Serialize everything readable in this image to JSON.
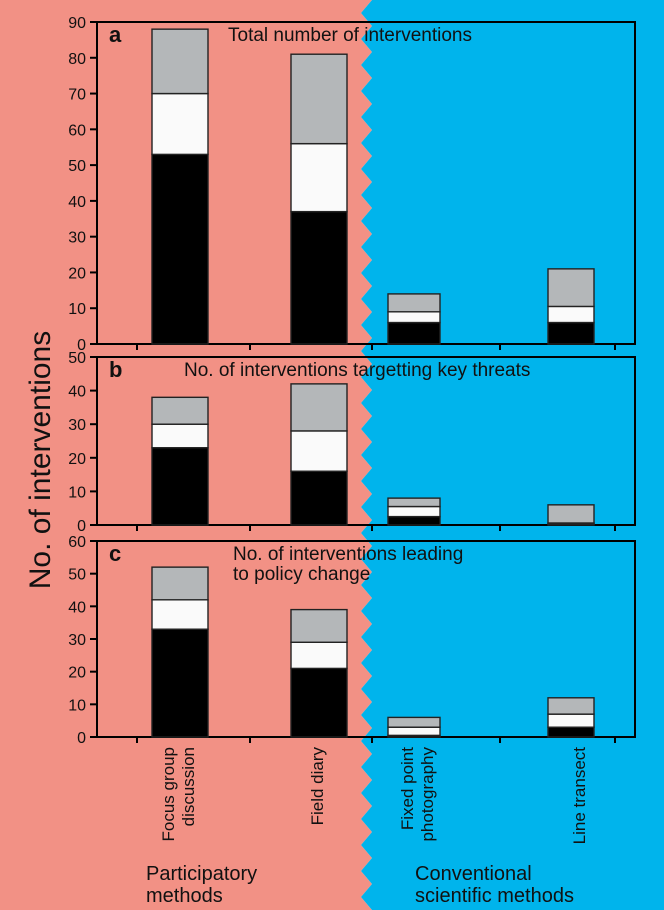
{
  "colors": {
    "participatory_bg": "#f29185",
    "conventional_bg": "#00b4ec",
    "segment_bottom": "#000000",
    "segment_middle": "#fafafa",
    "segment_top": "#b4b7b9"
  },
  "ylabel": "No. of interventions",
  "categories": [
    "Focus group discussion",
    "Field diary",
    "Fixed point photography",
    "Line transect"
  ],
  "category_lines": [
    [
      "Focus group",
      "discussion"
    ],
    [
      "Field diary"
    ],
    [
      "Fixed point",
      "photography"
    ],
    [
      "Line transect"
    ]
  ],
  "groups": {
    "participatory": [
      "Participatory",
      "methods"
    ],
    "conventional": [
      "Conventional",
      "scientific methods"
    ]
  },
  "chart_data": [
    {
      "type": "bar",
      "stacked": true,
      "letter": "a",
      "title": "Total number of interventions",
      "categories": [
        "Focus group discussion",
        "Field diary",
        "Fixed point photography",
        "Line transect"
      ],
      "series": [
        {
          "values": [
            53,
            37,
            6,
            6
          ]
        },
        {
          "values": [
            17,
            19,
            3,
            4.5
          ]
        },
        {
          "values": [
            18,
            25,
            5,
            10.5
          ]
        }
      ],
      "ylim": [
        0,
        90
      ],
      "yticks": [
        0,
        10,
        20,
        30,
        40,
        50,
        60,
        70,
        80,
        90
      ]
    },
    {
      "type": "bar",
      "stacked": true,
      "letter": "b",
      "title": "No. of interventions targetting key threats",
      "categories": [
        "Focus group discussion",
        "Field diary",
        "Fixed point photography",
        "Line transect"
      ],
      "series": [
        {
          "values": [
            23,
            16,
            2.5,
            0.3
          ]
        },
        {
          "values": [
            7,
            12,
            3,
            0.3
          ]
        },
        {
          "values": [
            8,
            14,
            2.5,
            5.4
          ]
        }
      ],
      "ylim": [
        0,
        50
      ],
      "yticks": [
        0,
        10,
        20,
        30,
        40,
        50
      ]
    },
    {
      "type": "bar",
      "stacked": true,
      "letter": "c",
      "title": [
        "No. of interventions leading",
        "to policy change"
      ],
      "categories": [
        "Focus group discussion",
        "Field diary",
        "Fixed point photography",
        "Line transect"
      ],
      "series": [
        {
          "values": [
            33,
            21,
            0.5,
            3
          ]
        },
        {
          "values": [
            9,
            8,
            2.5,
            4
          ]
        },
        {
          "values": [
            10,
            10,
            3,
            5
          ]
        }
      ],
      "ylim": [
        0,
        60
      ],
      "yticks": [
        0,
        10,
        20,
        30,
        40,
        50,
        60
      ]
    }
  ]
}
